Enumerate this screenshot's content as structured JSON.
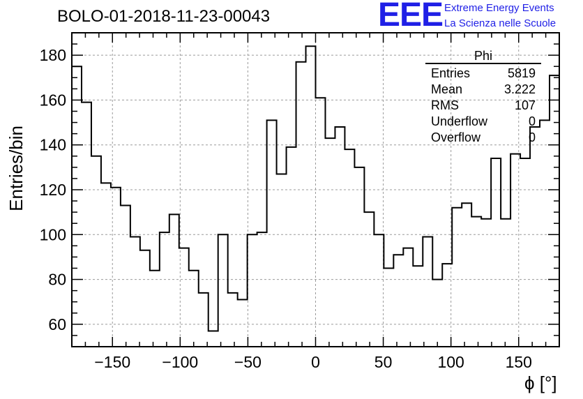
{
  "header": {
    "title": "BOLO-01-2018-11-23-00043",
    "logo_text": "EEE",
    "org_line1": "Extreme Energy Events",
    "org_line2": "La Scienza nelle Scuole"
  },
  "stats_box": {
    "name": "Phi",
    "rows": [
      {
        "label": "Entries",
        "value": "5819"
      },
      {
        "label": "Mean",
        "value": "3.222"
      },
      {
        "label": "RMS",
        "value": "107"
      },
      {
        "label": "Underflow",
        "value": "0"
      },
      {
        "label": "Overflow",
        "value": "0"
      }
    ]
  },
  "colors": {
    "line": "#000000",
    "grid": "#9a9a9a",
    "logo": "#1f1fe6"
  },
  "chart_data": {
    "type": "histogram",
    "xlabel": "ϕ [°]",
    "ylabel": "Entries/bin",
    "xlim": [
      -180,
      180
    ],
    "ylim": [
      50,
      190
    ],
    "bin_width": 7.2,
    "x_ticks": [
      -150,
      -100,
      -50,
      0,
      50,
      100,
      150
    ],
    "x_tick_labels": [
      "−150",
      "−100",
      "−50",
      "0",
      "50",
      "100",
      "150"
    ],
    "y_ticks": [
      60,
      80,
      100,
      120,
      140,
      160,
      180
    ],
    "y_tick_labels": [
      "60",
      "80",
      "100",
      "120",
      "140",
      "160",
      "180"
    ],
    "grid": true,
    "values": [
      175,
      159,
      135,
      123,
      121,
      113,
      99,
      93,
      84,
      101,
      109,
      94,
      84,
      74,
      57,
      100,
      74,
      71,
      100,
      101,
      151,
      127,
      139,
      177,
      184,
      161,
      143,
      148,
      138,
      130,
      110,
      100,
      85,
      91,
      94,
      86,
      99,
      80,
      87,
      112,
      114,
      108,
      107,
      134,
      107,
      136,
      134,
      148,
      151,
      171
    ]
  }
}
